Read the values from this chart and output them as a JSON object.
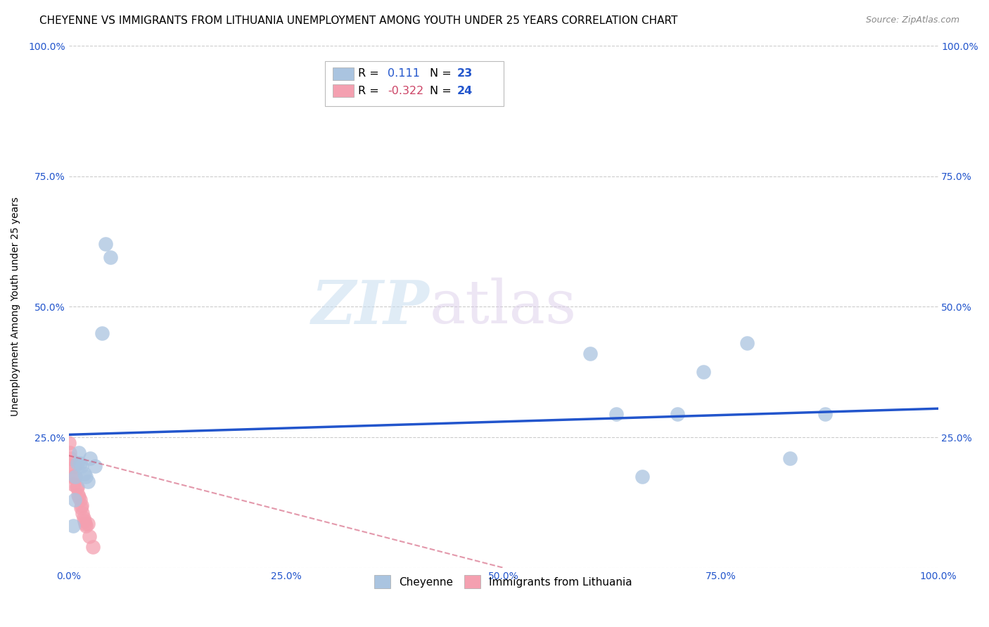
{
  "title": "CHEYENNE VS IMMIGRANTS FROM LITHUANIA UNEMPLOYMENT AMONG YOUTH UNDER 25 YEARS CORRELATION CHART",
  "source": "Source: ZipAtlas.com",
  "ylabel": "Unemployment Among Youth under 25 years",
  "x_tick_labels": [
    "0.0%",
    "25.0%",
    "50.0%",
    "75.0%",
    "100.0%"
  ],
  "x_tick_values": [
    0.0,
    0.25,
    0.5,
    0.75,
    1.0
  ],
  "y_tick_labels": [
    "",
    "25.0%",
    "50.0%",
    "75.0%",
    "100.0%"
  ],
  "y_tick_values": [
    0.0,
    0.25,
    0.5,
    0.75,
    1.0
  ],
  "cheyenne_R": 0.111,
  "cheyenne_N": 23,
  "lithuania_R": -0.322,
  "lithuania_N": 24,
  "cheyenne_color": "#aac4e0",
  "cheyenne_line_color": "#2255cc",
  "lithuania_color": "#f4a0b0",
  "lithuania_line_color": "#cc4466",
  "background_color": "#ffffff",
  "grid_color": "#cccccc",
  "watermark_zip": "ZIP",
  "watermark_atlas": "atlas",
  "cheyenne_x": [
    0.005,
    0.007,
    0.008,
    0.01,
    0.012,
    0.013,
    0.015,
    0.018,
    0.02,
    0.022,
    0.025,
    0.03,
    0.038,
    0.042,
    0.048,
    0.6,
    0.63,
    0.66,
    0.7,
    0.73,
    0.78,
    0.83,
    0.87
  ],
  "cheyenne_y": [
    0.08,
    0.13,
    0.175,
    0.2,
    0.22,
    0.2,
    0.195,
    0.18,
    0.175,
    0.165,
    0.21,
    0.195,
    0.45,
    0.62,
    0.595,
    0.41,
    0.295,
    0.175,
    0.295,
    0.375,
    0.43,
    0.21,
    0.295
  ],
  "lithuania_x": [
    0.0,
    0.001,
    0.002,
    0.003,
    0.004,
    0.005,
    0.006,
    0.007,
    0.008,
    0.009,
    0.01,
    0.011,
    0.012,
    0.013,
    0.014,
    0.015,
    0.016,
    0.017,
    0.018,
    0.019,
    0.02,
    0.022,
    0.024,
    0.028
  ],
  "lithuania_y": [
    0.24,
    0.22,
    0.21,
    0.195,
    0.175,
    0.16,
    0.175,
    0.195,
    0.175,
    0.155,
    0.155,
    0.14,
    0.135,
    0.13,
    0.115,
    0.12,
    0.105,
    0.095,
    0.09,
    0.085,
    0.08,
    0.085,
    0.06,
    0.04
  ],
  "legend_label_cheyenne": "Cheyenne",
  "legend_label_lithuania": "Immigrants from Lithuania",
  "title_fontsize": 11,
  "axis_label_fontsize": 10,
  "tick_fontsize": 10,
  "cheyenne_line_x0": 0.0,
  "cheyenne_line_x1": 1.0,
  "cheyenne_line_y0": 0.255,
  "cheyenne_line_y1": 0.305,
  "lithuania_line_x0": 0.0,
  "lithuania_line_x1": 0.5,
  "lithuania_line_y0": 0.215,
  "lithuania_line_y1": 0.0
}
